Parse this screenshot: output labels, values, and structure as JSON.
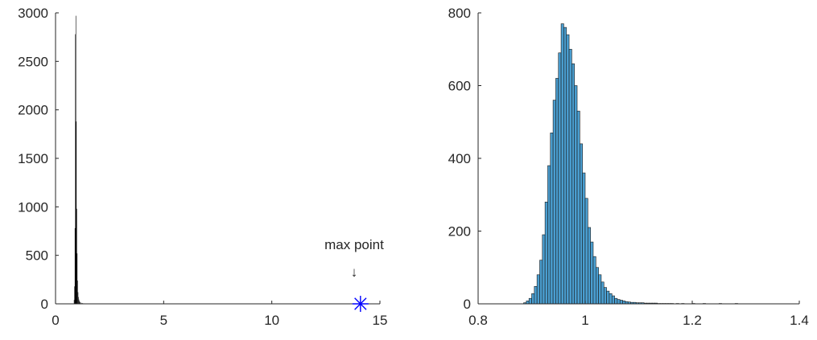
{
  "chart_data": [
    {
      "type": "bar",
      "title": "",
      "xlabel": "",
      "ylabel": "",
      "xlim": [
        0,
        15
      ],
      "ylim": [
        0,
        3000
      ],
      "xticks": [
        0,
        5,
        10,
        15
      ],
      "yticks": [
        0,
        500,
        1000,
        1500,
        2000,
        2500,
        3000
      ],
      "grid": false,
      "bar_color": "#000000",
      "x": [
        0.86,
        0.88,
        0.9,
        0.92,
        0.94,
        0.96,
        0.98,
        1.0,
        1.02,
        1.04,
        1.06,
        1.08,
        1.1,
        1.12,
        1.15,
        1.2,
        1.25,
        1.3,
        1.4,
        1.5,
        1.7,
        2.0
      ],
      "values": [
        40,
        180,
        780,
        2780,
        2970,
        1880,
        980,
        520,
        240,
        120,
        70,
        45,
        30,
        22,
        15,
        10,
        7,
        5,
        4,
        3,
        2,
        1
      ],
      "annotation": {
        "text": "max point",
        "arrow": "↓",
        "x": 14.1,
        "y": 0,
        "marker": "asterisk",
        "marker_color": "#0000ff"
      }
    },
    {
      "type": "bar",
      "title": "",
      "xlabel": "",
      "ylabel": "",
      "xlim": [
        0.8,
        1.4
      ],
      "ylim": [
        0,
        800
      ],
      "xticks": [
        0.8,
        1,
        1.2,
        1.4
      ],
      "xtick_labels": [
        "0.8",
        "1",
        "1.2",
        "1.4"
      ],
      "yticks": [
        0,
        200,
        400,
        600,
        800
      ],
      "grid": false,
      "bar_color": "#4a9ed0",
      "bin_width": 0.005,
      "x": [
        0.885,
        0.89,
        0.895,
        0.9,
        0.905,
        0.91,
        0.915,
        0.92,
        0.925,
        0.93,
        0.935,
        0.94,
        0.945,
        0.95,
        0.955,
        0.96,
        0.965,
        0.97,
        0.975,
        0.98,
        0.985,
        0.99,
        0.995,
        1.0,
        1.005,
        1.01,
        1.015,
        1.02,
        1.025,
        1.03,
        1.035,
        1.04,
        1.045,
        1.05,
        1.055,
        1.06,
        1.065,
        1.07,
        1.075,
        1.08,
        1.085,
        1.09,
        1.095,
        1.1,
        1.105,
        1.11,
        1.115,
        1.12,
        1.125,
        1.13,
        1.135,
        1.14,
        1.145,
        1.15,
        1.155,
        1.16,
        1.17,
        1.18,
        1.2,
        1.22,
        1.25,
        1.28
      ],
      "values": [
        3,
        8,
        15,
        28,
        48,
        80,
        120,
        190,
        280,
        380,
        470,
        560,
        620,
        690,
        770,
        760,
        740,
        700,
        660,
        600,
        530,
        440,
        360,
        290,
        210,
        170,
        130,
        100,
        80,
        60,
        45,
        35,
        28,
        22,
        15,
        12,
        10,
        8,
        6,
        5,
        4,
        4,
        3,
        3,
        3,
        2,
        2,
        2,
        2,
        2,
        1,
        1,
        1,
        1,
        1,
        1,
        1,
        1,
        1,
        1,
        1,
        1
      ]
    }
  ]
}
